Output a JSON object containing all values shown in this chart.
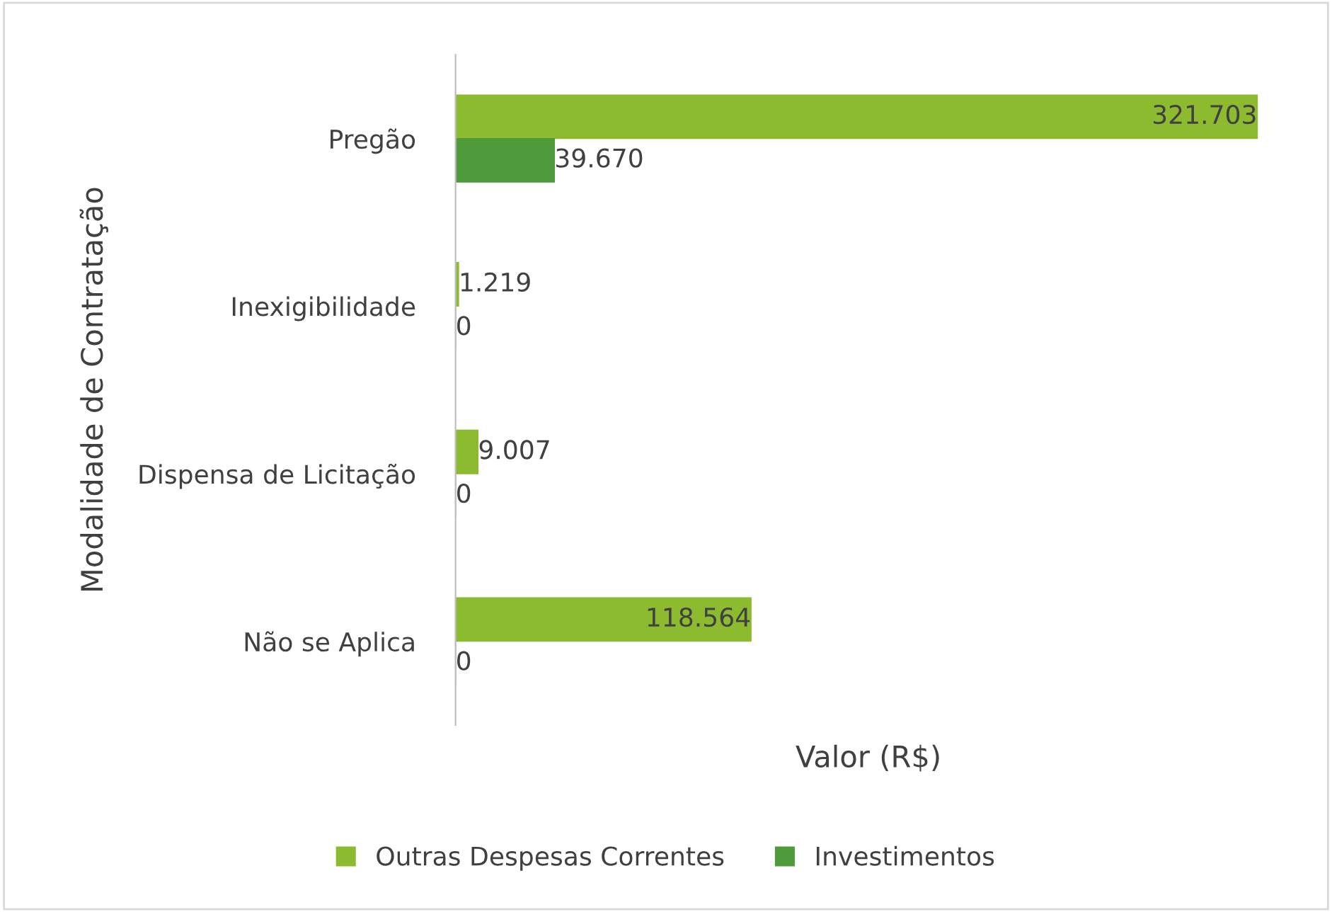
{
  "chart_data": {
    "type": "bar",
    "orientation": "horizontal",
    "xlabel": "Valor (R$)",
    "ylabel": "Modalidade de Contratação",
    "categories": [
      "Pregão",
      "Inexigibilidade",
      "Dispensa de Licitação",
      "Não se Aplica"
    ],
    "series": [
      {
        "name": "Outras Despesas Correntes",
        "color": "#8cbb30",
        "values": [
          321703,
          1219,
          9007,
          118564
        ],
        "value_labels": [
          "321.703",
          "1.219",
          "9.007",
          "118.564"
        ]
      },
      {
        "name": "Investimentos",
        "color": "#4f9a3a",
        "values": [
          39670,
          0,
          0,
          0
        ],
        "value_labels": [
          "39.670",
          "0",
          "0",
          "0"
        ]
      }
    ],
    "legend": "bottom",
    "grid": false
  }
}
